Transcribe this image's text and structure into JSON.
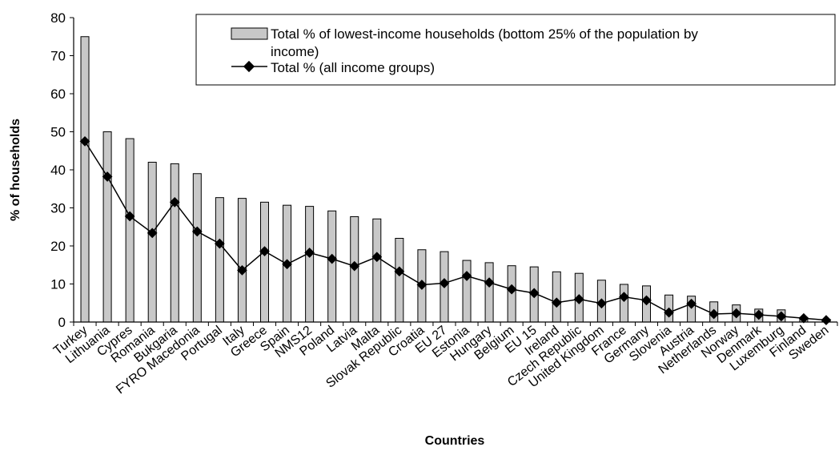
{
  "chart_data": {
    "type": "bar",
    "xlabel": "Countries",
    "ylabel": "% of households",
    "ylim": [
      0,
      80
    ],
    "yticks": [
      "0",
      "10",
      "20",
      "30",
      "40",
      "50",
      "60",
      "70",
      "80"
    ],
    "grid": false,
    "legend_position": "top-right",
    "categories": [
      "Turkey",
      "Lithuania",
      "Cypres",
      "Romania",
      "Bukgaria",
      "FYRO Macedonia",
      "Portugal",
      "Italy",
      "Greece",
      "Spain",
      "NMS12",
      "Poland",
      "Latvia",
      "Malta",
      "Slovak Republic",
      "Croatia",
      "EU 27",
      "Estonia",
      "Hungary",
      "Belgium",
      "EU 15",
      "Ireland",
      "Czech Republic",
      "United Kingdom",
      "France",
      "Germany",
      "Slovenia",
      "Austria",
      "Netherlands",
      "Norway",
      "Denmark",
      "Luxemburg",
      "Finland",
      "Sweden"
    ],
    "series": [
      {
        "name": "Total % of lowest-income households (bottom 25% of the population by income)",
        "type": "bar",
        "color": "#c8c8c8",
        "values": [
          75,
          50,
          48.2,
          42,
          41.6,
          39,
          32.7,
          32.5,
          31.5,
          30.7,
          30.4,
          29.2,
          27.7,
          27.1,
          22,
          19,
          18.5,
          16.2,
          15.6,
          14.8,
          14.5,
          13.2,
          12.8,
          11,
          9.9,
          9.5,
          7.1,
          6.8,
          5.3,
          4.5,
          3.4,
          3.2,
          1.2,
          0.7
        ]
      },
      {
        "name": "Total % (all income groups)",
        "type": "line",
        "color": "#000000",
        "values": [
          47.5,
          38.2,
          27.8,
          23.4,
          31.5,
          23.8,
          20.6,
          13.6,
          18.6,
          15.2,
          18.2,
          16.6,
          14.7,
          17.1,
          13.3,
          9.8,
          10.2,
          12.1,
          10.4,
          8.6,
          7.6,
          5.1,
          6,
          4.9,
          6.6,
          5.7,
          2.5,
          4.8,
          2.1,
          2.3,
          1.9,
          1.5,
          1,
          0.5
        ]
      }
    ]
  }
}
